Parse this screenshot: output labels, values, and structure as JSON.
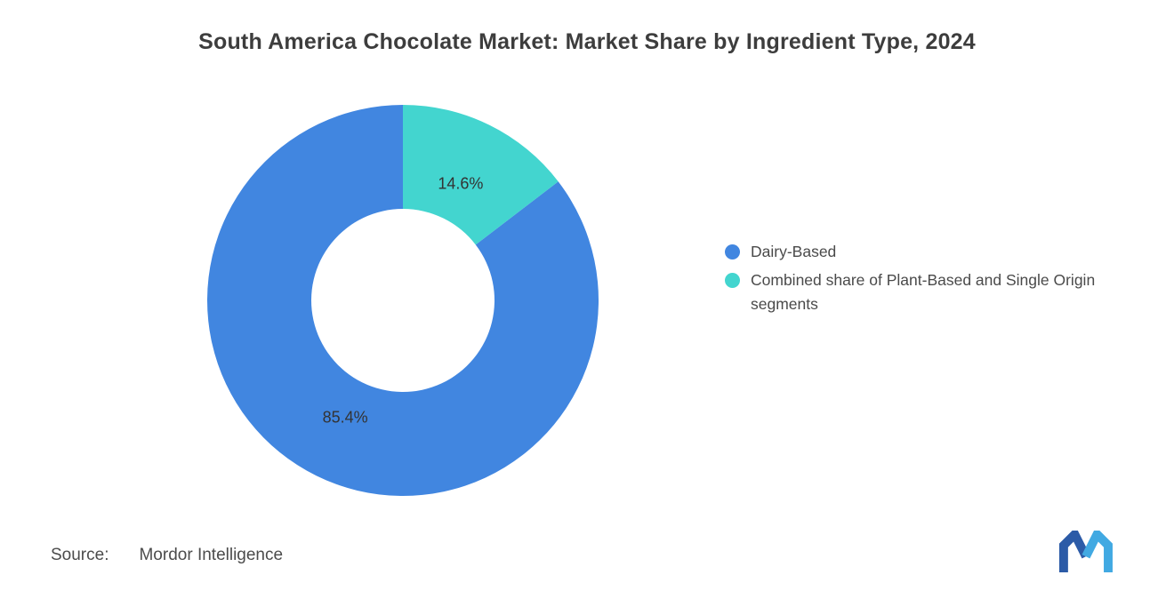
{
  "page": {
    "background": "#ffffff"
  },
  "chart_data": {
    "type": "pie",
    "subtype": "donut",
    "title": "South America Chocolate Market: Market Share by Ingredient Type, 2024",
    "slices": [
      {
        "label": "Dairy-Based",
        "value": 85.4,
        "display": "85.4%",
        "color": "#4186E0"
      },
      {
        "label": "Combined share of Plant-Based and Single Origin segments",
        "value": 14.6,
        "display": "14.6%",
        "color": "#43D5CF"
      }
    ],
    "legend_position": "right",
    "inner_radius_ratio": 0.47,
    "label_color": "#333333",
    "direction": "counter-clockwise-from-top",
    "start_at": "12-o-clock"
  },
  "source": {
    "label": "Source:",
    "value": "Mordor Intelligence"
  },
  "logo": {
    "name": "mordor-intelligence-logo",
    "color_dark": "#2C5BA7",
    "color_light": "#41A9E2"
  }
}
